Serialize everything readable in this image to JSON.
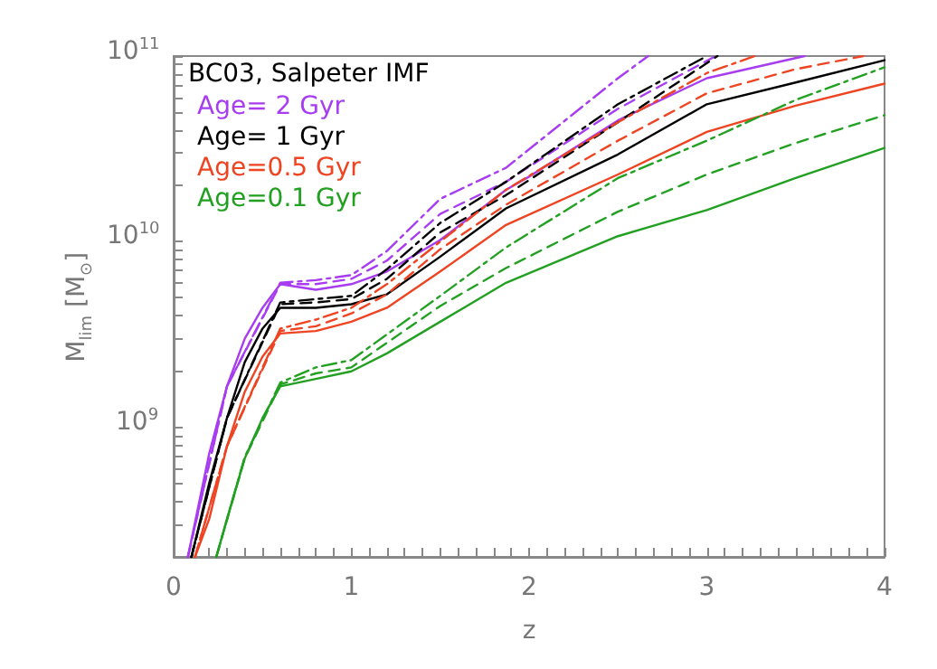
{
  "chart_data": {
    "type": "line",
    "xlabel": "z",
    "ylabel": "M$_{lim}$ [M$_{⊙}$]",
    "legend_title": "BC03, Salpeter IMF",
    "legend": "top left",
    "log": "y",
    "grid": false,
    "marker": "none",
    "xlim": [
      0,
      4
    ],
    "ylim": [
      200000000.0,
      100000000000.0
    ],
    "xticks": [
      0,
      {
        "value": 0.1,
        "label": null
      },
      {
        "value": 0.2,
        "label": null
      },
      {
        "value": 0.3,
        "label": null
      },
      {
        "value": 0.4,
        "label": null
      },
      {
        "value": 0.5,
        "label": null
      },
      {
        "value": 0.6,
        "label": null
      },
      {
        "value": 0.7,
        "label": null
      },
      {
        "value": 0.8,
        "label": null
      },
      {
        "value": 0.9,
        "label": null
      },
      1,
      {
        "value": 1.1,
        "label": null
      },
      {
        "value": 1.2,
        "label": null
      },
      {
        "value": 1.3,
        "label": null
      },
      {
        "value": 1.4,
        "label": null
      },
      {
        "value": 1.5,
        "label": null
      },
      {
        "value": 1.6,
        "label": null
      },
      {
        "value": 1.7,
        "label": null
      },
      {
        "value": 1.8,
        "label": null
      },
      {
        "value": 1.9,
        "label": null
      },
      2,
      {
        "value": 2.1,
        "label": null
      },
      {
        "value": 2.2,
        "label": null
      },
      {
        "value": 2.3,
        "label": null
      },
      {
        "value": 2.4,
        "label": null
      },
      {
        "value": 2.5,
        "label": null
      },
      {
        "value": 2.6,
        "label": null
      },
      {
        "value": 2.7,
        "label": null
      },
      {
        "value": 2.8,
        "label": null
      },
      {
        "value": 2.9,
        "label": null
      },
      3,
      {
        "value": 3.1,
        "label": null
      },
      {
        "value": 3.2,
        "label": null
      },
      {
        "value": 3.3,
        "label": null
      },
      {
        "value": 3.4,
        "label": null
      },
      {
        "value": 3.5,
        "label": null
      },
      {
        "value": 3.6,
        "label": null
      },
      {
        "value": 3.7,
        "label": null
      },
      {
        "value": 3.8,
        "label": null
      },
      {
        "value": 3.9,
        "label": null
      },
      4
    ],
    "yticks": [
      {
        "value": 300000000.0,
        "label": null
      },
      {
        "value": 400000000.0,
        "label": null
      },
      {
        "value": 500000000.0,
        "label": null
      },
      {
        "value": 600000000.0,
        "label": null
      },
      {
        "value": 700000000.0,
        "label": null
      },
      {
        "value": 800000000.0,
        "label": null
      },
      {
        "value": 900000000.0,
        "label": null
      },
      {
        "value": 1000000000.0,
        "label": "10$^{9}$"
      },
      {
        "value": 2000000000.0,
        "label": null
      },
      {
        "value": 3000000000.0,
        "label": null
      },
      {
        "value": 4000000000.0,
        "label": null
      },
      {
        "value": 5000000000.0,
        "label": null
      },
      {
        "value": 6000000000.0,
        "label": null
      },
      {
        "value": 7000000000.0,
        "label": null
      },
      {
        "value": 8000000000.0,
        "label": null
      },
      {
        "value": 9000000000.0,
        "label": null
      },
      {
        "value": 10000000000.0,
        "label": "10$^{10}$"
      },
      {
        "value": 20000000000.0,
        "label": null
      },
      {
        "value": 30000000000.0,
        "label": null
      },
      {
        "value": 40000000000.0,
        "label": null
      },
      {
        "value": 50000000000.0,
        "label": null
      },
      {
        "value": 60000000000.0,
        "label": null
      },
      {
        "value": 70000000000.0,
        "label": null
      },
      {
        "value": 80000000000.0,
        "label": null
      },
      {
        "value": 90000000000.0,
        "label": null
      },
      {
        "value": 100000000000.0,
        "label": "10$^{11}$"
      }
    ],
    "series": [
      {
        "name": "Age= 2 Gyr",
        "color": "#a83cf0",
        "line_style": "solid",
        "x": [
          0.08,
          0.2,
          0.3,
          0.4,
          0.5,
          0.6,
          0.8,
          1.0,
          1.2,
          1.5,
          1.87,
          2.0,
          2.5,
          3.0,
          3.55
        ],
        "values": [
          200000000.0,
          720000000.0,
          1660000000.0,
          3000000000.0,
          4400000000.0,
          5900000000.0,
          5500000000.0,
          5900000000.0,
          6900000000.0,
          10200000000.0,
          19000000000.0,
          22400000000.0,
          45000000000.0,
          76000000000.0,
          100000000000.0
        ]
      },
      {
        "color": "#a83cf0",
        "line_style": "dashed",
        "x": [
          0.08,
          0.3,
          0.6,
          0.8,
          1.0,
          1.2,
          1.5,
          1.87,
          2.5,
          3.05
        ],
        "values": [
          200000000.0,
          1660000000.0,
          5900000000.0,
          5900000000.0,
          6300000000.0,
          7900000000.0,
          14100000000.0,
          21000000000.0,
          52000000000.0,
          100000000000.0
        ]
      },
      {
        "color": "#a83cf0",
        "line_style": "dashdot",
        "x": [
          0.08,
          0.3,
          0.6,
          0.8,
          1.0,
          1.2,
          1.5,
          1.87,
          2.5,
          2.67
        ],
        "values": [
          200000000.0,
          1660000000.0,
          6000000000.0,
          6200000000.0,
          6600000000.0,
          8900000000.0,
          17000000000.0,
          25000000000.0,
          76000000000.0,
          100000000000.0
        ]
      },
      {
        "name": "Age= 1 Gyr",
        "color": "#000000",
        "line_style": "solid",
        "x": [
          0.1,
          0.2,
          0.3,
          0.4,
          0.5,
          0.6,
          0.8,
          1.0,
          1.2,
          1.5,
          1.87,
          2.5,
          3.0,
          3.5,
          4.0
        ],
        "values": [
          200000000.0,
          500000000.0,
          1120000000.0,
          2240000000.0,
          3400000000.0,
          4400000000.0,
          4400000000.0,
          4600000000.0,
          5200000000.0,
          8300000000.0,
          15100000000.0,
          29500000000.0,
          55000000000.0,
          72000000000.0,
          95000000000.0
        ]
      },
      {
        "color": "#000000",
        "line_style": "dashed",
        "x": [
          0.1,
          0.3,
          0.6,
          0.8,
          1.0,
          1.2,
          1.5,
          1.87,
          2.5,
          3.06
        ],
        "values": [
          200000000.0,
          1120000000.0,
          4600000000.0,
          4700000000.0,
          4900000000.0,
          6300000000.0,
          11200000000.0,
          17800000000.0,
          44000000000.0,
          100000000000.0
        ]
      },
      {
        "color": "#000000",
        "line_style": "dashdot",
        "x": [
          0.1,
          0.3,
          0.6,
          0.8,
          1.0,
          1.2,
          1.5,
          1.87,
          2.5,
          3.0
        ],
        "values": [
          200000000.0,
          1120000000.0,
          4700000000.0,
          4900000000.0,
          5100000000.0,
          7100000000.0,
          12600000000.0,
          21000000000.0,
          55000000000.0,
          100000000000.0
        ]
      },
      {
        "name": "Age=0.5 Gyr",
        "color": "#ee4422",
        "line_style": "solid",
        "x": [
          0.12,
          0.2,
          0.3,
          0.4,
          0.5,
          0.6,
          0.8,
          1.0,
          1.2,
          1.5,
          1.87,
          2.5,
          3.0,
          3.5,
          4.0
        ],
        "values": [
          200000000.0,
          320000000.0,
          790000000.0,
          1550000000.0,
          2400000000.0,
          3200000000.0,
          3300000000.0,
          3700000000.0,
          4400000000.0,
          6900000000.0,
          12300000000.0,
          23000000000.0,
          39000000000.0,
          54000000000.0,
          71000000000.0
        ]
      },
      {
        "color": "#ee4422",
        "line_style": "dashed",
        "x": [
          0.12,
          0.3,
          0.6,
          0.8,
          1.0,
          1.2,
          1.5,
          1.87,
          2.5,
          3.0,
          3.5,
          3.88
        ],
        "values": [
          200000000.0,
          790000000.0,
          3300000000.0,
          3500000000.0,
          4100000000.0,
          5200000000.0,
          9100000000.0,
          15800000000.0,
          35000000000.0,
          63000000000.0,
          85000000000.0,
          100000000000.0
        ]
      },
      {
        "color": "#ee4422",
        "line_style": "dashdot",
        "x": [
          0.12,
          0.3,
          0.6,
          0.8,
          1.0,
          1.2,
          1.5,
          1.87,
          2.5,
          3.0,
          3.27
        ],
        "values": [
          200000000.0,
          790000000.0,
          3400000000.0,
          3800000000.0,
          4400000000.0,
          5900000000.0,
          10000000000.0,
          19000000000.0,
          44000000000.0,
          81000000000.0,
          100000000000.0
        ]
      },
      {
        "name": "Age=0.1 Gyr",
        "color": "#22a022",
        "line_style": "solid",
        "x": [
          0.24,
          0.3,
          0.4,
          0.5,
          0.6,
          0.8,
          1.0,
          1.2,
          1.5,
          1.87,
          2.5,
          3.0,
          3.5,
          4.0
        ],
        "values": [
          200000000.0,
          320000000.0,
          680000000.0,
          1120000000.0,
          1660000000.0,
          1820000000.0,
          2000000000.0,
          2500000000.0,
          3700000000.0,
          6000000000.0,
          10700000000.0,
          14800000000.0,
          22000000000.0,
          32000000000.0
        ]
      },
      {
        "color": "#22a022",
        "line_style": "dashed",
        "x": [
          0.24,
          0.4,
          0.6,
          0.8,
          1.0,
          1.5,
          1.87,
          2.5,
          3.0,
          3.5,
          4.0
        ],
        "values": [
          200000000.0,
          680000000.0,
          1700000000.0,
          1950000000.0,
          2100000000.0,
          4500000000.0,
          7200000000.0,
          14500000000.0,
          23000000000.0,
          34000000000.0,
          48000000000.0
        ]
      },
      {
        "color": "#22a022",
        "line_style": "dashdot",
        "x": [
          0.24,
          0.4,
          0.6,
          0.8,
          1.0,
          1.5,
          1.87,
          2.5,
          3.0,
          3.5,
          4.0
        ],
        "values": [
          200000000.0,
          690000000.0,
          1740000000.0,
          2100000000.0,
          2300000000.0,
          5100000000.0,
          9300000000.0,
          22000000000.0,
          35000000000.0,
          58000000000.0,
          87000000000.0
        ]
      }
    ]
  }
}
